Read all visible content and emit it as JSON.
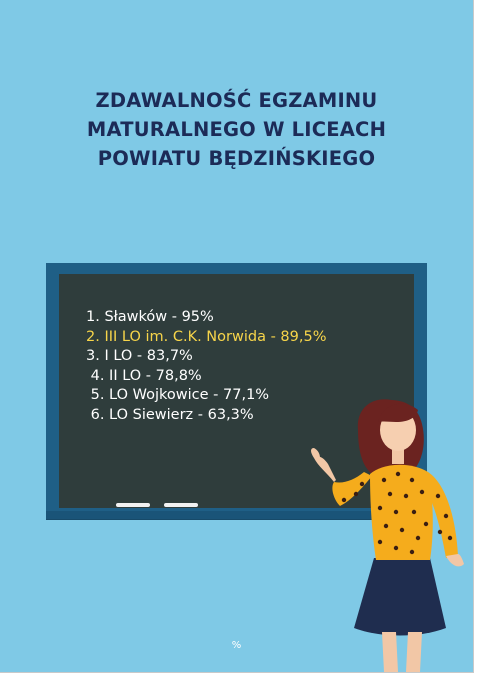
{
  "title_lines": [
    "ZDAWALNOŚĆ EGZAMINU",
    "MATURALNEGO W LICEACH",
    "POWIATU BĘDZIŃSKIEGO"
  ],
  "ranking": [
    "1. Sławków - 95%",
    "2. III LO im. C.K. Norwida - 89,5%",
    "3. I LO - 83,7%",
    " 4. II LO - 78,8%",
    " 5. LO Wojkowice - 77,1%",
    " 6. LO Siewierz - 63,3%"
  ],
  "highlighted_index": 1,
  "footer_symbol": "%",
  "colors": {
    "background": "#7fc9e6",
    "title": "#1c2b57",
    "board_frame": "#1f5f86",
    "board_surface": "#2f3d3c",
    "text": "#ffffff",
    "highlight": "#f7d54a"
  },
  "illustration": "teacher-pointing-at-chalkboard"
}
